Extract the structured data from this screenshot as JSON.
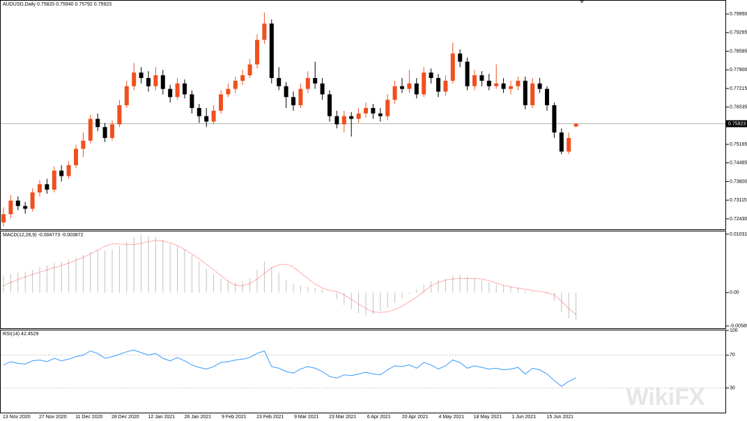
{
  "chart_data": [
    {
      "type": "candlestick",
      "title": "AUDUSD,Daily  0.75820 0.75940 0.75792 0.75923",
      "x": [
        null,
        null,
        "13 Nov 2020",
        null,
        null,
        null,
        null,
        "27 Nov 2020",
        null,
        null,
        null,
        null,
        "11 Dec 2020",
        null,
        null,
        null,
        null,
        "28 Dec 2020",
        null,
        null,
        null,
        null,
        "12 Jan 2021",
        null,
        null,
        null,
        null,
        "26 Jan 2021",
        null,
        null,
        null,
        null,
        "9 Feb 2021",
        null,
        null,
        null,
        null,
        "23 Feb 2021",
        null,
        null,
        null,
        null,
        "9 Mar 2021",
        null,
        null,
        null,
        null,
        "23 Mar 2021",
        null,
        null,
        null,
        null,
        "6 Apr 2021",
        null,
        null,
        null,
        null,
        "20 Apr 2021",
        null,
        null,
        null,
        null,
        "4 May 2021",
        null,
        null,
        null,
        null,
        "18 May 2021",
        null,
        null,
        null,
        null,
        "1 Jun 2021",
        null,
        null,
        null,
        null,
        "15 Jun 2021",
        null,
        null
      ],
      "open": [
        0.723,
        0.726,
        0.731,
        0.729,
        0.728,
        0.734,
        0.737,
        0.735,
        0.742,
        0.74,
        0.744,
        0.75,
        0.753,
        0.761,
        0.758,
        0.754,
        0.759,
        0.766,
        0.773,
        0.778,
        0.776,
        0.773,
        0.777,
        0.772,
        0.769,
        0.774,
        0.77,
        0.765,
        0.762,
        0.76,
        0.764,
        0.77,
        0.772,
        0.775,
        0.777,
        0.781,
        0.79,
        0.796,
        0.776,
        0.773,
        0.769,
        0.766,
        0.772,
        0.776,
        0.774,
        0.77,
        0.762,
        0.759,
        0.762,
        0.761,
        0.763,
        0.765,
        0.763,
        0.762,
        0.768,
        0.773,
        0.772,
        0.774,
        0.77,
        0.778,
        0.776,
        0.771,
        0.775,
        0.785,
        0.782,
        0.773,
        0.777,
        0.775,
        0.773,
        0.774,
        0.772,
        0.773,
        0.775,
        0.766,
        0.774,
        0.772,
        0.766,
        0.756,
        0.749,
        0.7582
      ],
      "high": [
        0.7285,
        0.733,
        0.7325,
        0.7305,
        0.7355,
        0.7385,
        0.739,
        0.7435,
        0.744,
        0.7455,
        0.7515,
        0.756,
        0.7625,
        0.763,
        0.7595,
        0.7605,
        0.768,
        0.775,
        0.7815,
        0.78,
        0.7785,
        0.78,
        0.779,
        0.7735,
        0.776,
        0.7755,
        0.7715,
        0.7665,
        0.765,
        0.766,
        0.7715,
        0.774,
        0.7765,
        0.779,
        0.783,
        0.792,
        0.8,
        0.7975,
        0.78,
        0.7745,
        0.771,
        0.774,
        0.7785,
        0.782,
        0.776,
        0.7715,
        0.764,
        0.764,
        0.7635,
        0.765,
        0.767,
        0.7665,
        0.765,
        0.77,
        0.775,
        0.776,
        0.779,
        0.776,
        0.78,
        0.7795,
        0.7775,
        0.777,
        0.789,
        0.7865,
        0.7835,
        0.779,
        0.7785,
        0.7775,
        0.781,
        0.776,
        0.775,
        0.7765,
        0.7765,
        0.776,
        0.776,
        0.773,
        0.767,
        0.7575,
        0.756,
        0.7594
      ],
      "low": [
        0.7215,
        0.7245,
        0.7275,
        0.7262,
        0.727,
        0.7325,
        0.7335,
        0.734,
        0.738,
        0.739,
        0.743,
        0.747,
        0.752,
        0.7565,
        0.7525,
        0.753,
        0.758,
        0.765,
        0.7715,
        0.774,
        0.771,
        0.7715,
        0.77,
        0.767,
        0.768,
        0.7685,
        0.763,
        0.7595,
        0.758,
        0.759,
        0.763,
        0.769,
        0.7705,
        0.7735,
        0.776,
        0.7795,
        0.7885,
        0.774,
        0.7715,
        0.765,
        0.764,
        0.765,
        0.7705,
        0.772,
        0.768,
        0.76,
        0.7575,
        0.756,
        0.7545,
        0.7595,
        0.7615,
        0.761,
        0.76,
        0.7605,
        0.7665,
        0.7705,
        0.7705,
        0.7685,
        0.769,
        0.774,
        0.769,
        0.7695,
        0.774,
        0.78,
        0.7715,
        0.7715,
        0.773,
        0.7715,
        0.772,
        0.7705,
        0.77,
        0.7715,
        0.7645,
        0.765,
        0.7705,
        0.764,
        0.754,
        0.748,
        0.748,
        0.75792
      ],
      "close": [
        0.726,
        0.731,
        0.729,
        0.728,
        0.734,
        0.737,
        0.735,
        0.742,
        0.74,
        0.744,
        0.75,
        0.753,
        0.761,
        0.758,
        0.754,
        0.759,
        0.766,
        0.773,
        0.778,
        0.776,
        0.773,
        0.777,
        0.772,
        0.769,
        0.774,
        0.77,
        0.765,
        0.762,
        0.76,
        0.764,
        0.77,
        0.772,
        0.775,
        0.777,
        0.781,
        0.79,
        0.796,
        0.776,
        0.773,
        0.769,
        0.766,
        0.772,
        0.776,
        0.774,
        0.77,
        0.762,
        0.759,
        0.762,
        0.761,
        0.763,
        0.765,
        0.763,
        0.762,
        0.768,
        0.773,
        0.772,
        0.774,
        0.77,
        0.778,
        0.776,
        0.771,
        0.775,
        0.785,
        0.782,
        0.773,
        0.777,
        0.775,
        0.773,
        0.774,
        0.772,
        0.773,
        0.775,
        0.766,
        0.774,
        0.772,
        0.766,
        0.756,
        0.749,
        0.754,
        0.75923
      ],
      "up_color": "#f0501e",
      "down_color": "#000000",
      "last_price": 0.75923,
      "ylim": [
        0.72045,
        0.80439
      ],
      "yticks": [
        {
          "value": 0.7995,
          "label": "0.79950"
        },
        {
          "value": 0.79265,
          "label": "0.79265"
        },
        {
          "value": 0.78585,
          "label": "0.78585"
        },
        {
          "value": 0.779,
          "label": "0.77900"
        },
        {
          "value": 0.77215,
          "label": "0.77215"
        },
        {
          "value": 0.76535,
          "label": "0.76535"
        },
        {
          "value": 0.75165,
          "label": "0.75165"
        },
        {
          "value": 0.74485,
          "label": "0.74485"
        },
        {
          "value": 0.738,
          "label": "0.73800"
        },
        {
          "value": 0.73115,
          "label": "0.73115"
        },
        {
          "value": 0.7243,
          "label": "0.72430"
        }
      ]
    },
    {
      "type": "macd",
      "title": "MACD(12,26,9) -0.004773 -0.003872",
      "histogram": [
        0.003,
        0.0033,
        0.0035,
        0.0037,
        0.004,
        0.0045,
        0.0048,
        0.0052,
        0.0055,
        0.0058,
        0.0062,
        0.0066,
        0.0072,
        0.0075,
        0.0074,
        0.0076,
        0.0082,
        0.009,
        0.0098,
        0.0102,
        0.01,
        0.0098,
        0.0093,
        0.0086,
        0.0082,
        0.0076,
        0.0066,
        0.0055,
        0.0042,
        0.0032,
        0.0025,
        0.002,
        0.0018,
        0.002,
        0.0025,
        0.004,
        0.0055,
        0.0045,
        0.0035,
        0.0022,
        0.0015,
        0.0012,
        0.001,
        0.0008,
        0.0005,
        0.0,
        -0.0012,
        -0.0022,
        -0.003,
        -0.0036,
        -0.004,
        -0.0038,
        -0.0032,
        -0.0026,
        -0.0018,
        -0.001,
        -0.0002,
        0.0006,
        0.0014,
        0.002,
        0.0022,
        0.0024,
        0.003,
        0.0032,
        0.0028,
        0.0026,
        0.0022,
        0.0018,
        0.0015,
        0.0012,
        0.001,
        0.0008,
        0.0004,
        0.0002,
        0.0,
        -0.0002,
        -0.0015,
        -0.0035,
        -0.0045,
        -0.004773
      ],
      "signal": [
        0.0012,
        0.0018,
        0.0023,
        0.0028,
        0.0032,
        0.0036,
        0.004,
        0.0044,
        0.0048,
        0.0052,
        0.0057,
        0.0062,
        0.0068,
        0.0075,
        0.0082,
        0.0086,
        0.0086,
        0.0085,
        0.0085,
        0.0087,
        0.009,
        0.0092,
        0.0091,
        0.0088,
        0.0083,
        0.0076,
        0.0068,
        0.006,
        0.005,
        0.004,
        0.003,
        0.002,
        0.0013,
        0.0012,
        0.0016,
        0.0024,
        0.0034,
        0.0044,
        0.0049,
        0.005,
        0.0045,
        0.0035,
        0.0025,
        0.0015,
        0.0008,
        0.0004,
        0.0002,
        -0.0004,
        -0.0012,
        -0.002,
        -0.0028,
        -0.0034,
        -0.0035,
        -0.0034,
        -0.003,
        -0.0024,
        -0.0016,
        -0.0008,
        0.0002,
        0.0012,
        0.0018,
        0.0022,
        0.0024,
        0.0025,
        0.0025,
        0.0025,
        0.0024,
        0.0021,
        0.0017,
        0.0013,
        0.001,
        0.0008,
        0.0006,
        0.0004,
        0.0002,
        0.0,
        -0.0004,
        -0.0015,
        -0.0028,
        -0.003872
      ],
      "histogram_color": "#c0c0c0",
      "signal_color": "#ff3030",
      "ylim": [
        -0.0063,
        0.0108
      ],
      "yticks": [
        0.010315,
        {
          "value": 0,
          "label": "0.00"
        },
        -0.005897
      ]
    },
    {
      "type": "line",
      "title": "RSI(14) 42.4529",
      "values": [
        58,
        62,
        60,
        59,
        63,
        64,
        62,
        66,
        63,
        65,
        68,
        70,
        75,
        72,
        66,
        68,
        71,
        74,
        76,
        73,
        70,
        72,
        66,
        63,
        67,
        63,
        58,
        55,
        53,
        56,
        61,
        62,
        64,
        65,
        67,
        72,
        75,
        56,
        54,
        50,
        48,
        53,
        56,
        54,
        50,
        44,
        42,
        46,
        45,
        47,
        49,
        47,
        46,
        52,
        57,
        56,
        58,
        54,
        61,
        58,
        53,
        57,
        64,
        61,
        54,
        57,
        55,
        53,
        54,
        52,
        53,
        55,
        47,
        54,
        52,
        47,
        39,
        32,
        38,
        42.4529
      ],
      "color": "#3399ff",
      "ylim": [
        0,
        100
      ],
      "yticks": [
        100,
        70,
        30
      ]
    }
  ],
  "watermark": "WikiFX"
}
